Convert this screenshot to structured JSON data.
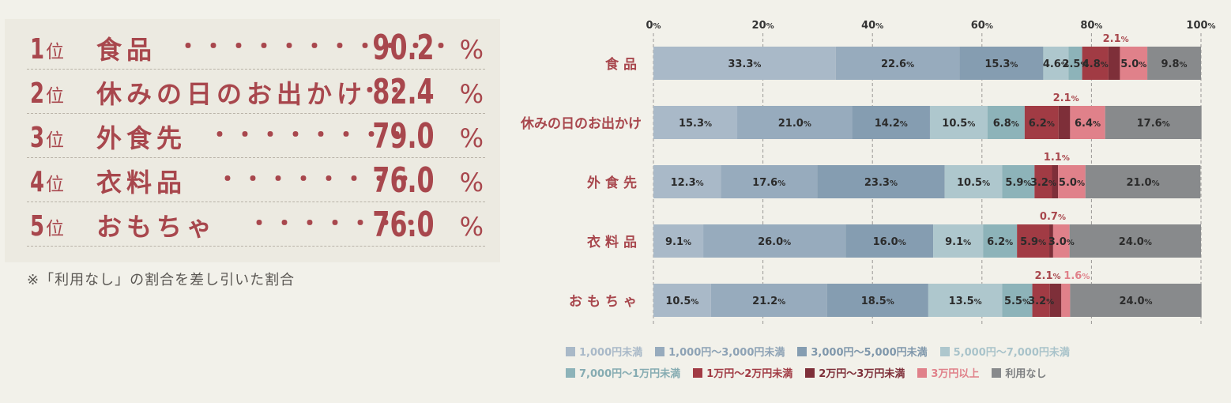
{
  "ranking": {
    "items": [
      {
        "rank": "1",
        "suffix": "位",
        "label": "食品",
        "dots": "・・・・・・・・・・・",
        "value": "90.2",
        "pct": "%"
      },
      {
        "rank": "2",
        "suffix": "位",
        "label": "休みの日のお出かけ",
        "dots": "・・",
        "value": "82.4",
        "pct": "%"
      },
      {
        "rank": "3",
        "suffix": "位",
        "label": "外食先",
        "dots": "・・・・・・・・",
        "value": "79.0",
        "pct": "%"
      },
      {
        "rank": "4",
        "suffix": "位",
        "label": "衣料品",
        "dots": "・・・・・・・・",
        "value": "76.0",
        "pct": "%"
      },
      {
        "rank": "5",
        "suffix": "位",
        "label": "おもちゃ",
        "dots": "・・・・・・・",
        "value": "76.0",
        "pct": "%"
      }
    ],
    "note": "※「利用なし」の割合を差し引いた割合"
  },
  "chart_data": {
    "type": "bar",
    "orientation": "horizontal",
    "stacked": true,
    "xlim": [
      0,
      100
    ],
    "ticks": [
      "0%",
      "20%",
      "40%",
      "60%",
      "80%",
      "100%"
    ],
    "categories": [
      "食品",
      "休みの日のお出かけ",
      "外食先",
      "衣料品",
      "おもちゃ"
    ],
    "series": [
      {
        "name": "1,000円未満",
        "color": "#a9b9c8",
        "text_color": "#a9b9c8",
        "values": [
          33.3,
          15.3,
          12.3,
          9.1,
          10.5
        ]
      },
      {
        "name": "1,000円〜3,000円未満",
        "color": "#97abbd",
        "text_color": "#8da2b5",
        "values": [
          22.6,
          21.0,
          17.6,
          26.0,
          21.2
        ]
      },
      {
        "name": "3,000円〜5,000円未満",
        "color": "#859db1",
        "text_color": "#7f97ab",
        "values": [
          15.3,
          14.2,
          23.3,
          16.0,
          18.5
        ]
      },
      {
        "name": "5,000円〜7,000円未満",
        "color": "#aec7cd",
        "text_color": "#a9c3ca",
        "values": [
          4.6,
          10.5,
          10.5,
          9.1,
          13.5
        ]
      },
      {
        "name": "7,000円〜1万円未満",
        "color": "#8db3b9",
        "text_color": "#86acb2",
        "values": [
          2.5,
          6.8,
          5.9,
          6.2,
          5.5
        ]
      },
      {
        "name": "1万円〜2万円未満",
        "color": "#a13b44",
        "text_color": "#a13b44",
        "values": [
          4.8,
          6.2,
          3.2,
          5.9,
          3.2
        ]
      },
      {
        "name": "2万円〜3万円未満",
        "color": "#7e2f39",
        "text_color": "#7e2f39",
        "values": [
          2.1,
          2.1,
          1.1,
          0.7,
          2.1
        ]
      },
      {
        "name": "3万円以上",
        "color": "#e0818a",
        "text_color": "#e0818a",
        "values": [
          5.0,
          6.4,
          5.0,
          3.0,
          1.6
        ]
      },
      {
        "name": "利用なし",
        "color": "#888a8c",
        "text_color": "#7d7f81",
        "values": [
          9.8,
          17.6,
          21.0,
          24.0,
          24.0
        ]
      }
    ],
    "data_labels": [
      [
        "33.3",
        "22.6",
        "15.3",
        "4.6",
        "2.5",
        "4.8",
        "2.1",
        "5.0",
        "9.8"
      ],
      [
        "15.3",
        "21.0",
        "14.2",
        "10.5",
        "6.8",
        "6.2",
        "2.1",
        "6.4",
        "17.6"
      ],
      [
        "12.3",
        "17.6",
        "23.3",
        "10.5",
        "5.9",
        "3.2",
        "1.1",
        "5.0",
        "21.0"
      ],
      [
        "9.1",
        "26.0",
        "16.0",
        "9.1",
        "6.2",
        "5.9",
        "0.7",
        "3.0",
        "24.0"
      ],
      [
        "10.5",
        "21.2",
        "18.5",
        "13.5",
        "5.5",
        "3.2",
        "2.1",
        "1.6",
        "24.0"
      ]
    ],
    "label_unit": "%",
    "label_above": [
      [
        6
      ],
      [
        6
      ],
      [
        6
      ],
      [
        6
      ],
      [
        6,
        7
      ]
    ],
    "legend_placement": "bottom",
    "grid": true
  }
}
